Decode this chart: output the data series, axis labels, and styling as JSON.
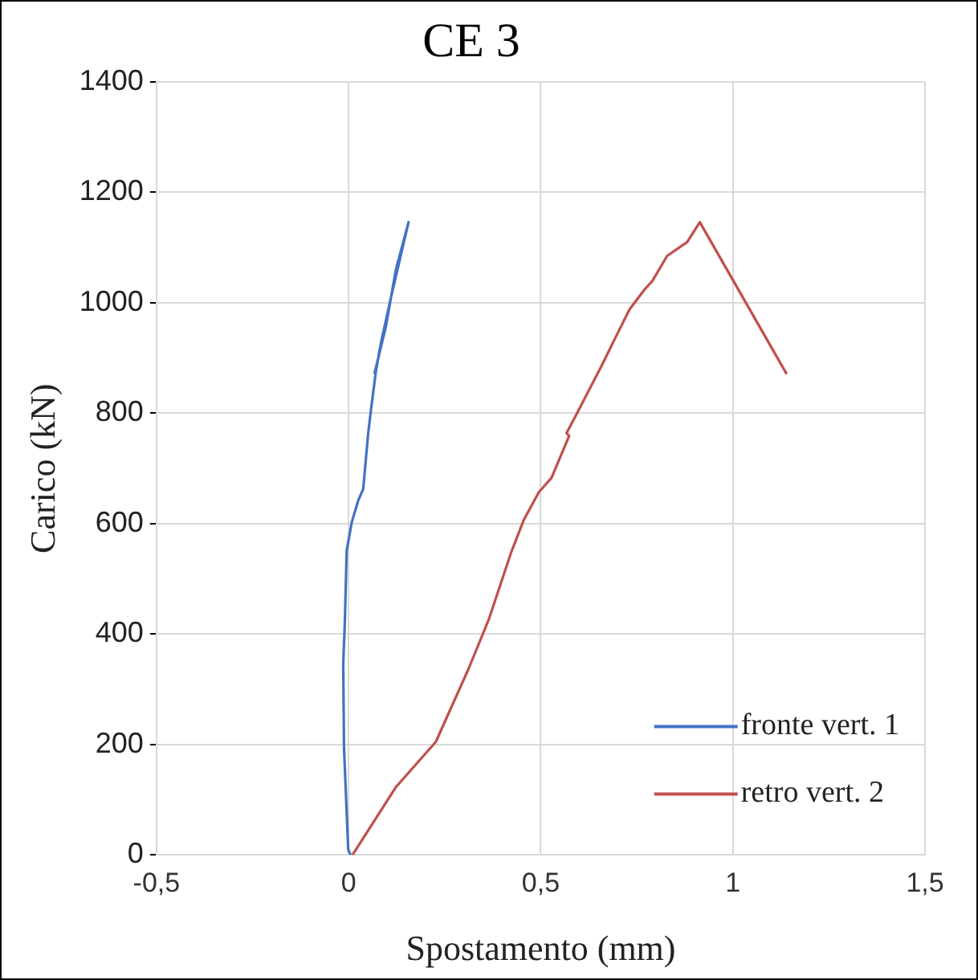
{
  "chart_data": {
    "type": "line",
    "title": "CE 3",
    "xlabel": "Spostamento (mm)",
    "ylabel": "Carico (kN)",
    "xlim": [
      -0.5,
      1.5
    ],
    "xticks": [
      {
        "value": -0.5,
        "label": "-0,5"
      },
      0,
      {
        "value": 0.5,
        "label": "0,5"
      },
      1,
      {
        "value": 1.5,
        "label": "1,5"
      }
    ],
    "ylim": [
      0,
      1400
    ],
    "yticks": [
      0,
      200,
      400,
      600,
      800,
      1000,
      1200,
      1400
    ],
    "grid": true,
    "legend": "bottom right",
    "marker": "none",
    "line_style": "solid",
    "series": [
      {
        "name": "fronte vert. 1",
        "color": "#4472c4",
        "x": [
          0.005,
          -0.001,
          -0.012,
          -0.014,
          -0.01,
          -0.005,
          0.008,
          0.025,
          0.038,
          0.051,
          0.058,
          0.071,
          0.084,
          0.11,
          0.156,
          0.123,
          0.097,
          0.067
        ],
        "values": [
          0,
          10,
          194,
          347,
          418,
          551,
          602,
          642,
          663,
          764,
          805,
          876,
          927,
          1009,
          1146,
          1060,
          957,
          871
        ]
      },
      {
        "name": "retro vert. 2",
        "color": "#c0504d",
        "x": [
          0.01,
          0.123,
          0.227,
          0.312,
          0.365,
          0.424,
          0.456,
          0.495,
          0.528,
          0.574,
          0.567,
          0.587,
          0.659,
          0.698,
          0.731,
          0.77,
          0.79,
          0.829,
          0.881,
          0.914,
          1.14
        ],
        "values": [
          0,
          123,
          205,
          337,
          427,
          550,
          607,
          657,
          683,
          759,
          764,
          790,
          887,
          942,
          988,
          1024,
          1039,
          1085,
          1110,
          1146,
          871
        ]
      }
    ]
  }
}
